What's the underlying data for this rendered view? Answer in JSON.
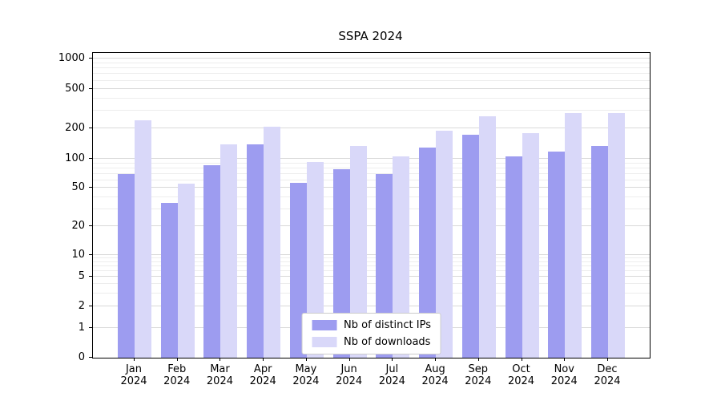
{
  "title": "SSPA 2024",
  "chart_data": {
    "type": "bar",
    "title": "SSPA 2024",
    "categories": [
      "Jan",
      "Feb",
      "Mar",
      "Apr",
      "May",
      "Jun",
      "Jul",
      "Aug",
      "Sep",
      "Oct",
      "Nov",
      "Dec"
    ],
    "x_year": "2024",
    "series": [
      {
        "name": "Nb of distinct IPs",
        "color": "#9d9cf0",
        "values": [
          70,
          35,
          85,
          140,
          56,
          78,
          70,
          130,
          175,
          105,
          118,
          135
        ]
      },
      {
        "name": "Nb of downloads",
        "color": "#d9d8f9",
        "values": [
          240,
          55,
          140,
          210,
          92,
          135,
          105,
          190,
          265,
          180,
          285,
          285
        ]
      }
    ],
    "yticks": [
      0,
      1,
      2,
      5,
      10,
      20,
      50,
      100,
      200,
      500,
      1000
    ],
    "yscale": "symlog",
    "ylim": [
      0,
      1100
    ],
    "xlabel": "",
    "ylabel": "",
    "grid": "horizontal",
    "legend_position": "lower center",
    "colors": {
      "grid_major": "#d9d9d9",
      "grid_minor": "#ededed",
      "axis": "#000000",
      "background": "#ffffff"
    }
  }
}
